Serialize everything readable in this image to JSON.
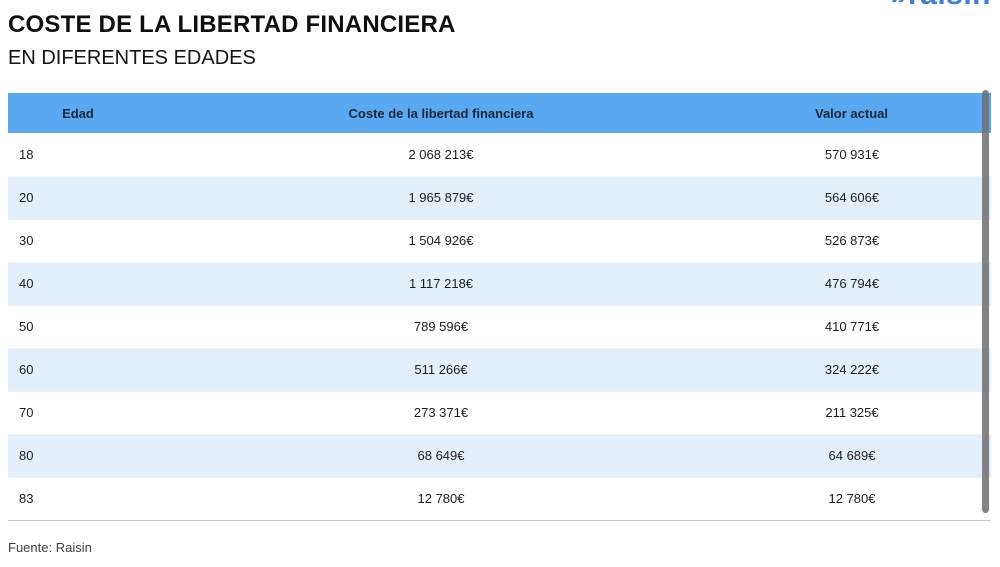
{
  "branding": {
    "logo_chevron": "»",
    "logo_text": "raisin",
    "logo_color": "#3d7edd"
  },
  "chart_data": {
    "type": "table",
    "title": "COSTE DE LA LIBERTAD FINANCIERA",
    "subtitle": "EN DIFERENTES EDADES",
    "columns": [
      "Edad",
      "Coste de la libertad financiera",
      "Valor actual"
    ],
    "rows": [
      [
        "18",
        "2 068 213€",
        "570 931€"
      ],
      [
        "20",
        "1 965 879€",
        "564 606€"
      ],
      [
        "30",
        "1 504 926€",
        "526 873€"
      ],
      [
        "40",
        "1 117 218€",
        "476 794€"
      ],
      [
        "50",
        "789 596€",
        "410 771€"
      ],
      [
        "60",
        "511 266€",
        "324 222€"
      ],
      [
        "70",
        "273 371€",
        "211 325€"
      ],
      [
        "80",
        "68 649€",
        "64 689€"
      ],
      [
        "83",
        "12 780€",
        "12 780€"
      ]
    ],
    "layout": {
      "header_bg": "#58a8f2",
      "row_stripe_bg": "#e3effb",
      "scrollbar_color": "#6e6e6e",
      "grid": "horizontal-stripes"
    }
  },
  "footer": {
    "source": "Fuente: Raisin"
  }
}
